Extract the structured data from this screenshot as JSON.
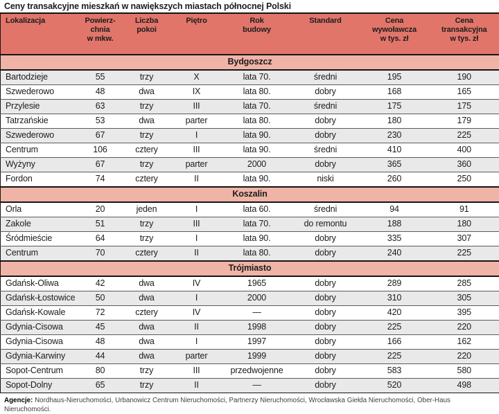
{
  "chart_data": {
    "type": "table",
    "title": "Ceny transakcyjne mieszkań w nawiększych miastach północnej Polski",
    "column_headers": [
      "Lokalizacja",
      "Powierz-\nchnia\nw mkw.",
      "Liczba\npokoi",
      "Piętro",
      "Rok\nbudowy",
      "Standard",
      "Cena\nwywoławcza\nw tys. zł",
      "Cena\ntransakcyjna\nw tys. zł"
    ],
    "column_keys": [
      "lokalizacja",
      "powierzchnia-mkw",
      "liczba-pokoi",
      "pietro",
      "rok-budowy",
      "standard",
      "cena-wywolawcza",
      "cena-transakcyjna"
    ],
    "sections": [
      {
        "name": "Bydgoszcz",
        "first_row_shaded": true,
        "rows": [
          [
            "Bartodzieje",
            "55",
            "trzy",
            "X",
            "lata 70.",
            "średni",
            "195",
            "190"
          ],
          [
            "Szwederowo",
            "48",
            "dwa",
            "IX",
            "lata 80.",
            "dobry",
            "168",
            "165"
          ],
          [
            "Przylesie",
            "63",
            "trzy",
            "III",
            "lata 70.",
            "średni",
            "175",
            "175"
          ],
          [
            "Tatrzańskie",
            "53",
            "dwa",
            "parter",
            "lata 80.",
            "dobry",
            "180",
            "179"
          ],
          [
            "Szwederowo",
            "67",
            "trzy",
            "I",
            "lata 90.",
            "dobry",
            "230",
            "225"
          ],
          [
            "Centrum",
            "106",
            "cztery",
            "III",
            "lata 90.",
            "średni",
            "410",
            "400"
          ],
          [
            "Wyżyny",
            "67",
            "trzy",
            "parter",
            "2000",
            "dobry",
            "365",
            "360"
          ],
          [
            "Fordon",
            "74",
            "cztery",
            "II",
            "lata 90.",
            "niski",
            "260",
            "250"
          ]
        ]
      },
      {
        "name": "Koszalin",
        "first_row_shaded": false,
        "rows": [
          [
            "Orla",
            "20",
            "jeden",
            "I",
            "lata 60.",
            "średni",
            "94",
            "91"
          ],
          [
            "Zakole",
            "51",
            "trzy",
            "III",
            "lata 70.",
            "do remontu",
            "188",
            "180"
          ],
          [
            "Śródmieście",
            "64",
            "trzy",
            "I",
            "lata 90.",
            "dobry",
            "335",
            "307"
          ],
          [
            "Centrum",
            "70",
            "cztery",
            "II",
            "lata 80.",
            "dobry",
            "240",
            "225"
          ]
        ]
      },
      {
        "name": "Trójmiasto",
        "first_row_shaded": false,
        "rows": [
          [
            "Gdańsk-Oliwa",
            "42",
            "dwa",
            "IV",
            "1965",
            "dobry",
            "289",
            "285"
          ],
          [
            "Gdańsk-Łostowice",
            "50",
            "dwa",
            "I",
            "2000",
            "dobry",
            "310",
            "305"
          ],
          [
            "Gdańsk-Kowale",
            "72",
            "cztery",
            "IV",
            "—",
            "dobry",
            "420",
            "395"
          ],
          [
            "Gdynia-Cisowa",
            "45",
            "dwa",
            "II",
            "1998",
            "dobry",
            "225",
            "220"
          ],
          [
            "Gdynia-Cisowa",
            "48",
            "dwa",
            "I",
            "1997",
            "dobry",
            "166",
            "162"
          ],
          [
            "Gdynia-Karwiny",
            "44",
            "dwa",
            "parter",
            "1999",
            "dobry",
            "225",
            "220"
          ],
          [
            "Sopot-Centrum",
            "80",
            "trzy",
            "III",
            "przedwojenne",
            "dobry",
            "583",
            "580"
          ],
          [
            "Sopot-Dolny",
            "65",
            "trzy",
            "II",
            "—",
            "dobry",
            "520",
            "498"
          ]
        ]
      }
    ],
    "footer_label": "Agencje:",
    "footer_text": "Nordhaus-Nieruchomości, Urbanowicz Centrum Nieruchomości, Partnerzy Nieruchomości, Wrocławska Giełda Nieruchomości, Ober-Haus Nieruchomości.",
    "colors": {
      "header_bg": "#e1756a",
      "band_bg": "#f0b4a7",
      "row_shaded_bg": "#e9e9e9",
      "rule_dark": "#141414",
      "row_line": "#5a5a5a",
      "text": "#1c1c1c",
      "footer_text": "#3f3f3f"
    }
  }
}
